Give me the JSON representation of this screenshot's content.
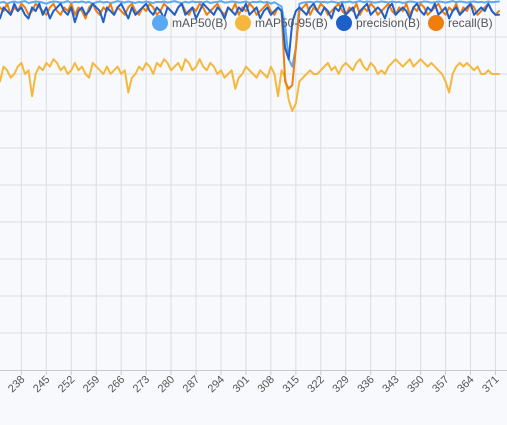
{
  "chart_data": {
    "type": "line",
    "title": "",
    "xlabel": "",
    "ylabel": "",
    "grid": true,
    "legend_position": "top-right",
    "x": [
      232,
      233,
      234,
      235,
      236,
      237,
      238,
      239,
      240,
      241,
      242,
      243,
      244,
      245,
      246,
      247,
      248,
      249,
      250,
      251,
      252,
      253,
      254,
      255,
      256,
      257,
      258,
      259,
      260,
      261,
      262,
      263,
      264,
      265,
      266,
      267,
      268,
      269,
      270,
      271,
      272,
      273,
      274,
      275,
      276,
      277,
      278,
      279,
      280,
      281,
      282,
      283,
      284,
      285,
      286,
      287,
      288,
      289,
      290,
      291,
      292,
      293,
      294,
      295,
      296,
      297,
      298,
      299,
      300,
      301,
      302,
      303,
      304,
      305,
      306,
      307,
      308,
      309,
      310,
      311,
      312,
      313,
      314,
      315,
      316,
      317,
      318,
      319,
      320,
      321,
      322,
      323,
      324,
      325,
      326,
      327,
      328,
      329,
      330,
      331,
      332,
      333,
      334,
      335,
      336,
      337,
      338,
      339,
      340,
      341,
      342,
      343,
      344,
      345,
      346,
      347,
      348,
      349,
      350,
      351,
      352,
      353,
      354,
      355,
      356,
      357,
      358,
      359,
      360,
      361,
      362,
      363,
      364,
      365,
      366,
      367,
      368,
      369,
      370,
      371,
      372
    ],
    "x_ticks": [
      238,
      245,
      252,
      259,
      266,
      273,
      280,
      287,
      294,
      301,
      308,
      315,
      322,
      329,
      336,
      343,
      350,
      357,
      364,
      371
    ],
    "ylim": [
      0,
      1
    ],
    "y_gridlines": [
      0.9,
      0.8,
      0.7,
      0.6,
      0.5,
      0.4,
      0.3,
      0.2,
      0.1
    ],
    "series": [
      {
        "name": "mAP50(B)",
        "color": "#5aa9f5",
        "values": [
          0.993,
          0.995,
          0.99,
          0.994,
          0.996,
          0.993,
          0.995,
          0.997,
          0.992,
          0.994,
          0.996,
          0.995,
          0.993,
          0.99,
          0.994,
          0.996,
          0.995,
          0.993,
          0.994,
          0.997,
          0.992,
          0.995,
          0.994,
          0.996,
          0.993,
          0.995,
          0.99,
          0.994,
          0.996,
          0.993,
          0.995,
          0.992,
          0.994,
          0.997,
          0.995,
          0.993,
          0.996,
          0.994,
          0.992,
          0.995,
          0.993,
          0.996,
          0.994,
          0.992,
          0.995,
          0.994,
          0.996,
          0.993,
          0.995,
          0.997,
          0.994,
          0.992,
          0.995,
          0.993,
          0.996,
          0.994,
          0.995,
          0.993,
          0.996,
          0.992,
          0.994,
          0.995,
          0.997,
          0.993,
          0.994,
          0.996,
          0.995,
          0.993,
          0.994,
          0.996,
          0.992,
          0.995,
          0.994,
          0.996,
          0.993,
          0.995,
          0.99,
          0.994,
          0.988,
          0.982,
          0.93,
          0.84,
          0.82,
          0.87,
          0.99,
          0.993,
          0.994,
          0.995,
          0.993,
          0.996,
          0.994,
          0.995,
          0.993,
          0.996,
          0.994,
          0.992,
          0.995,
          0.994,
          0.996,
          0.993,
          0.995,
          0.997,
          0.994,
          0.996,
          0.995,
          0.993,
          0.994,
          0.996,
          0.995,
          0.993,
          0.996,
          0.994,
          0.995,
          0.992,
          0.994,
          0.996,
          0.995,
          0.993,
          0.994,
          0.996,
          0.995,
          0.993,
          0.994,
          0.996,
          0.995,
          0.993,
          0.995,
          0.997,
          0.994,
          0.996,
          0.995,
          0.993,
          0.995,
          0.996,
          0.994,
          0.995,
          0.993,
          0.996,
          0.994,
          0.995,
          0.996
        ]
      },
      {
        "name": "mAP50-95(B)",
        "color": "#f5b83d",
        "values": [
          0.78,
          0.82,
          0.81,
          0.79,
          0.8,
          0.82,
          0.83,
          0.8,
          0.81,
          0.74,
          0.8,
          0.82,
          0.81,
          0.83,
          0.82,
          0.84,
          0.83,
          0.81,
          0.82,
          0.8,
          0.81,
          0.83,
          0.81,
          0.82,
          0.8,
          0.79,
          0.83,
          0.82,
          0.81,
          0.8,
          0.82,
          0.8,
          0.81,
          0.82,
          0.8,
          0.81,
          0.75,
          0.79,
          0.8,
          0.82,
          0.81,
          0.83,
          0.82,
          0.8,
          0.83,
          0.82,
          0.84,
          0.83,
          0.81,
          0.82,
          0.83,
          0.81,
          0.84,
          0.83,
          0.81,
          0.82,
          0.84,
          0.82,
          0.81,
          0.83,
          0.82,
          0.8,
          0.81,
          0.79,
          0.8,
          0.81,
          0.76,
          0.79,
          0.8,
          0.82,
          0.81,
          0.8,
          0.79,
          0.81,
          0.8,
          0.79,
          0.82,
          0.8,
          0.74,
          0.81,
          0.79,
          0.73,
          0.7,
          0.72,
          0.78,
          0.79,
          0.8,
          0.81,
          0.8,
          0.8,
          0.81,
          0.82,
          0.83,
          0.81,
          0.82,
          0.8,
          0.82,
          0.83,
          0.82,
          0.81,
          0.83,
          0.84,
          0.82,
          0.81,
          0.83,
          0.82,
          0.8,
          0.81,
          0.8,
          0.82,
          0.83,
          0.84,
          0.83,
          0.82,
          0.83,
          0.84,
          0.82,
          0.83,
          0.84,
          0.83,
          0.82,
          0.83,
          0.82,
          0.81,
          0.8,
          0.78,
          0.75,
          0.8,
          0.82,
          0.83,
          0.82,
          0.83,
          0.82,
          0.81,
          0.82,
          0.8,
          0.8,
          0.81,
          0.8,
          0.8,
          0.8
        ]
      },
      {
        "name": "precision(B)",
        "color": "#1f5fc9",
        "values": [
          0.95,
          0.98,
          0.97,
          0.96,
          0.99,
          0.97,
          0.98,
          0.96,
          0.95,
          0.98,
          0.97,
          0.99,
          0.96,
          0.98,
          0.95,
          0.97,
          0.98,
          0.99,
          0.97,
          0.96,
          0.98,
          0.94,
          0.97,
          0.98,
          0.96,
          0.97,
          0.99,
          0.98,
          0.97,
          0.94,
          0.98,
          0.97,
          0.96,
          0.98,
          0.99,
          0.97,
          0.95,
          0.98,
          0.96,
          0.97,
          0.98,
          0.99,
          0.97,
          0.96,
          0.98,
          0.97,
          0.95,
          0.98,
          0.97,
          0.96,
          0.98,
          0.99,
          0.96,
          0.97,
          0.98,
          0.95,
          0.97,
          0.99,
          0.98,
          0.97,
          0.96,
          0.98,
          0.97,
          0.95,
          0.98,
          0.97,
          0.96,
          0.98,
          0.97,
          0.99,
          0.96,
          0.97,
          0.98,
          0.95,
          0.97,
          0.98,
          0.96,
          0.97,
          0.98,
          0.97,
          0.87,
          0.84,
          0.94,
          0.97,
          0.98,
          0.97,
          0.96,
          0.98,
          0.99,
          0.97,
          0.96,
          0.98,
          0.97,
          0.95,
          0.98,
          0.97,
          0.99,
          0.96,
          0.97,
          0.98,
          0.95,
          0.97,
          0.98,
          0.99,
          0.96,
          0.97,
          0.98,
          0.97,
          0.95,
          0.98,
          0.99,
          0.96,
          0.97,
          0.98,
          0.97,
          0.95,
          0.98,
          0.99,
          0.97,
          0.96,
          0.98,
          0.97,
          0.99,
          0.96,
          0.97,
          0.98,
          0.95,
          0.97,
          0.98,
          0.96,
          0.97,
          0.98,
          0.99,
          0.96,
          0.97,
          0.98,
          0.97,
          0.99,
          0.97,
          0.96,
          0.96
        ]
      },
      {
        "name": "recall(B)",
        "color": "#f07e0e",
        "values": [
          0.98,
          0.97,
          0.99,
          0.96,
          0.98,
          0.97,
          0.99,
          0.98,
          0.96,
          0.97,
          0.99,
          0.98,
          0.97,
          0.96,
          0.98,
          0.99,
          0.97,
          0.96,
          0.98,
          0.97,
          0.99,
          0.96,
          0.98,
          0.97,
          0.95,
          0.98,
          0.99,
          0.97,
          0.96,
          0.98,
          0.97,
          0.99,
          0.96,
          0.98,
          0.97,
          0.96,
          0.98,
          0.99,
          0.97,
          0.96,
          0.98,
          0.97,
          0.99,
          0.98,
          0.96,
          0.97,
          0.99,
          0.98,
          0.97,
          0.96,
          0.98,
          0.99,
          0.97,
          0.96,
          0.98,
          0.97,
          0.99,
          0.98,
          0.96,
          0.97,
          0.98,
          0.99,
          0.97,
          0.96,
          0.98,
          0.97,
          0.99,
          0.96,
          0.98,
          0.97,
          0.99,
          0.98,
          0.96,
          0.97,
          0.98,
          0.99,
          0.97,
          0.96,
          0.98,
          0.97,
          0.78,
          0.76,
          0.77,
          0.87,
          0.97,
          0.98,
          0.99,
          0.96,
          0.98,
          0.97,
          0.99,
          0.98,
          0.96,
          0.97,
          0.98,
          0.99,
          0.97,
          0.96,
          0.98,
          0.97,
          0.99,
          0.96,
          0.98,
          0.97,
          0.99,
          0.98,
          0.96,
          0.97,
          0.98,
          0.99,
          0.97,
          0.96,
          0.98,
          0.97,
          0.99,
          0.96,
          0.98,
          0.97,
          0.99,
          0.98,
          0.96,
          0.97,
          0.98,
          0.99,
          0.97,
          0.96,
          0.98,
          0.97,
          0.99,
          0.96,
          0.98,
          0.97,
          0.99,
          0.98,
          0.96,
          0.97,
          0.98,
          0.99,
          0.97,
          0.96,
          0.97
        ]
      }
    ]
  }
}
